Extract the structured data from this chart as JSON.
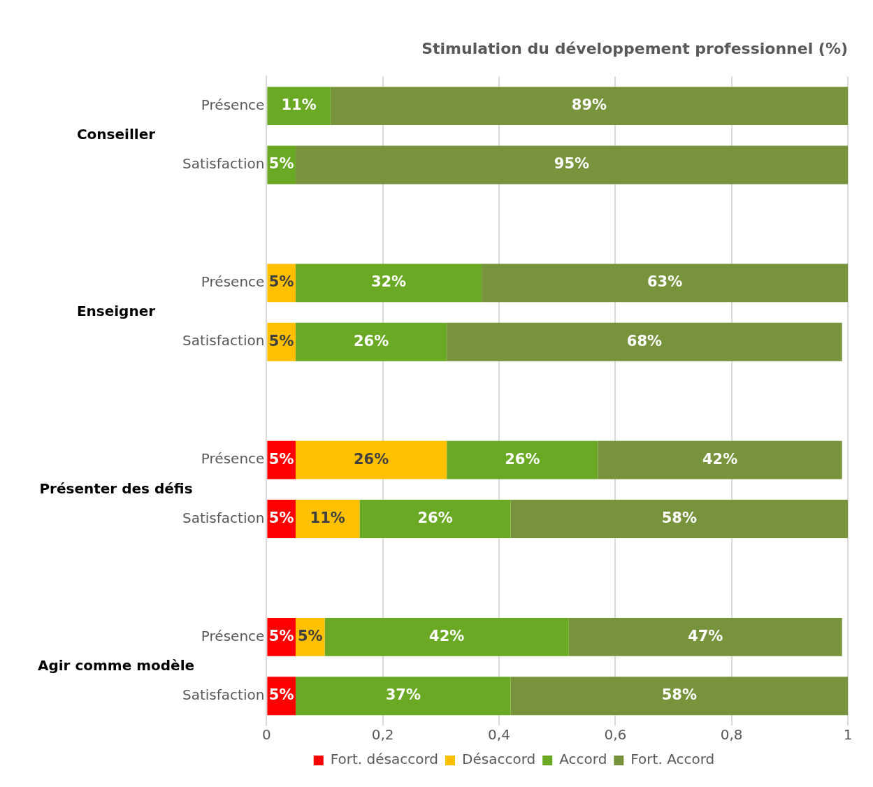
{
  "chart_data": {
    "type": "bar",
    "orientation": "horizontal",
    "stacked": true,
    "title": "Stimulation du développement professionnel (%)",
    "categories": [
      "Présence",
      "Satisfaction",
      null,
      "Présence",
      "Satisfaction",
      null,
      "Présence",
      "Satisfaction",
      null,
      "Présence",
      "Satisfaction"
    ],
    "annotations": [
      "Conseiller",
      "Enseigner",
      "Présenter des défis",
      "Agir comme modèle"
    ],
    "series": [
      {
        "name": "Fort. désaccord",
        "color": "#ff0000",
        "values": [
          null,
          null,
          null,
          null,
          null,
          null,
          0.05,
          0.05,
          null,
          0.05,
          0.05
        ],
        "value_labels": [
          null,
          null,
          null,
          null,
          null,
          null,
          "5%",
          "5%",
          null,
          "5%",
          "5%"
        ]
      },
      {
        "name": "Désaccord",
        "color": "#ffc000",
        "values": [
          null,
          null,
          null,
          0.05,
          0.05,
          null,
          0.26,
          0.11,
          null,
          0.05,
          null
        ],
        "value_labels": [
          null,
          null,
          null,
          "5%",
          "5%",
          null,
          "26%",
          "11%",
          null,
          "5%",
          null
        ]
      },
      {
        "name": "Accord",
        "color": "#6aa924",
        "values": [
          0.11,
          0.05,
          null,
          0.32,
          0.26,
          null,
          0.26,
          0.26,
          null,
          0.42,
          0.37
        ],
        "value_labels": [
          "11%",
          "5%",
          null,
          "32%",
          "26%",
          null,
          "26%",
          "26%",
          null,
          "42%",
          "37%"
        ]
      },
      {
        "name": "Fort. Accord",
        "color": "#77933c",
        "values": [
          0.89,
          0.95,
          null,
          0.63,
          0.68,
          null,
          0.42,
          0.58,
          null,
          0.47,
          0.58
        ],
        "value_labels": [
          "89%",
          "95%",
          null,
          "63%",
          "68%",
          null,
          "42%",
          "58%",
          null,
          "47%",
          "58%"
        ]
      }
    ],
    "xlim": [
      0,
      1
    ],
    "xticks": [
      {
        "value": 0,
        "label": "0"
      },
      {
        "value": 0.2,
        "label": "0,2"
      },
      {
        "value": 0.4,
        "label": "0,4"
      },
      {
        "value": 0.6,
        "label": "0,6"
      },
      {
        "value": 0.8,
        "label": "0,8"
      },
      {
        "value": 1,
        "label": "1"
      }
    ],
    "grid": "x",
    "legend": "bottom"
  }
}
